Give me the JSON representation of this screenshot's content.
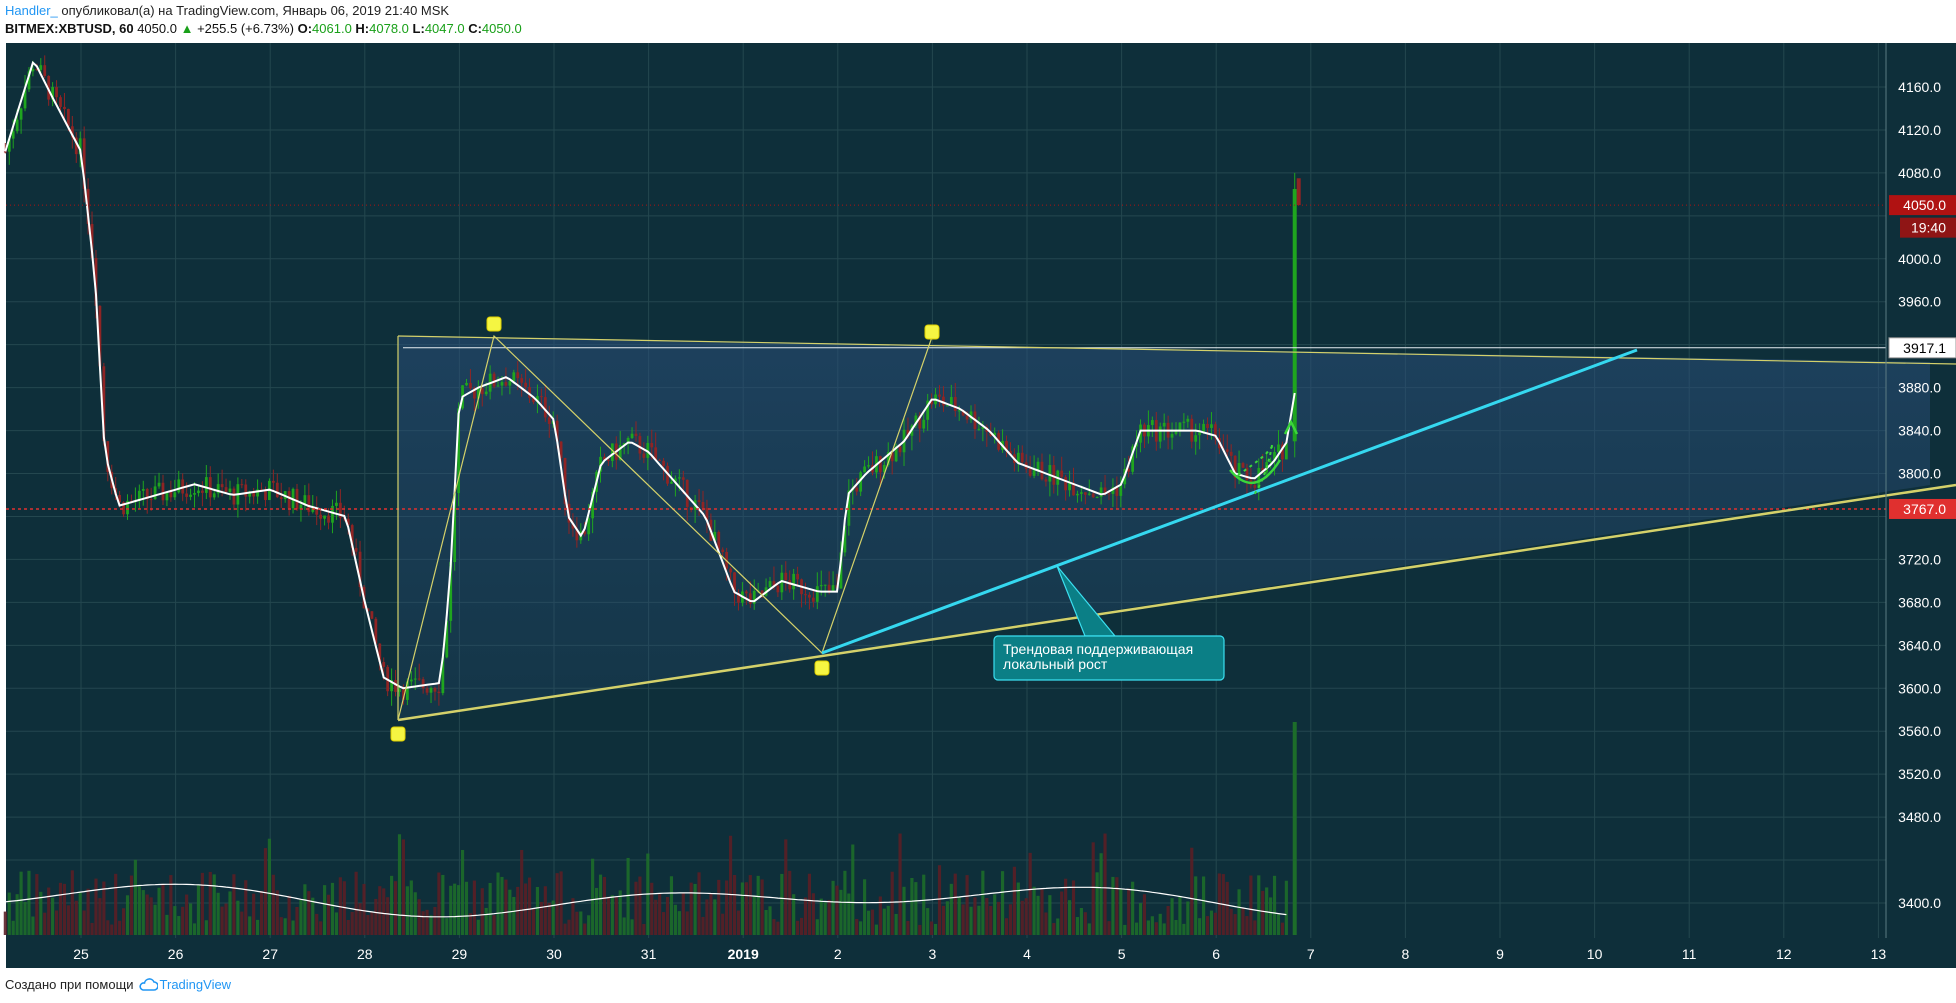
{
  "header": {
    "author": "Handler_",
    "published": "опубликовал(а) на TradingView.com, Январь 06, 2019 21:40 MSK",
    "symbol": "BITMEX:XBTUSD, 60",
    "price": "4050.0",
    "change": "+255.5 (+6.73%)",
    "o_label": "O:",
    "o_value": "4061.0",
    "h_label": "H:",
    "h_value": "4078.0",
    "l_label": "L:",
    "l_value": "4047.0",
    "c_label": "C:",
    "c_value": "4050.0"
  },
  "footer": {
    "created_with": "Создано при помощи",
    "brand": "TradingView",
    "brand_icon": "tradingview-cloud-icon"
  },
  "colors": {
    "background": "#0e2f3a",
    "candle_up": "#1fa51f",
    "candle_down": "#8f2424",
    "ma_line": "#ffffff",
    "trend_support": "#35d8f0",
    "triangle_lines": "#d4d16a",
    "marker": "#f5f542",
    "price_tag": "#b01212",
    "support_level": "#e0302f",
    "callout_fill": "#0b7f86"
  },
  "annotations": {
    "callout_line1": "Трендовая поддерживающая",
    "callout_line2": " локальный рост"
  },
  "chart_data": {
    "type": "candlestick",
    "y_axis": {
      "ticks": [
        3400,
        3440,
        3480,
        3520,
        3560,
        3600,
        3640,
        3680,
        3720,
        3760,
        3800,
        3840,
        3880,
        3920,
        3960,
        4000,
        4040,
        4080,
        4120,
        4160
      ],
      "tick_labels": [
        "3400.0",
        "",
        "3480.0",
        "3520.0",
        "3560.0",
        "3600.0",
        "3640.0",
        "3680.0",
        "3720.0",
        "",
        "3800.0",
        "3840.0",
        "3880.0",
        "",
        "3960.0",
        "4000.0",
        "",
        "4080.0",
        "4120.0",
        "4160.0"
      ],
      "ylim": [
        3370,
        4200
      ]
    },
    "x_axis": {
      "tick_labels": [
        "25",
        "26",
        "27",
        "28",
        "29",
        "30",
        "31",
        "2019",
        "2",
        "3",
        "4",
        "5",
        "6",
        "7",
        "8",
        "9",
        "10",
        "11",
        "12",
        "13"
      ]
    },
    "price_tags": [
      {
        "label": "4050.0",
        "value": 4050,
        "type": "last-price"
      },
      {
        "label": "19:40",
        "value": 4029,
        "type": "countdown"
      },
      {
        "label": "3917.1",
        "value": 3917.1,
        "type": "horizontal-line"
      },
      {
        "label": "3767.0",
        "value": 3767,
        "type": "support-level"
      }
    ],
    "key_points": [
      {
        "date": "Dec 28",
        "price": 3570
      },
      {
        "date": "Dec 29",
        "price": 3925
      },
      {
        "date": "Jan 1",
        "price": 3630
      },
      {
        "date": "Jan 3",
        "price": 3915
      },
      {
        "date": "Jan 6",
        "price": 3800
      },
      {
        "date": "Jan 6",
        "price": 4080
      }
    ]
  }
}
